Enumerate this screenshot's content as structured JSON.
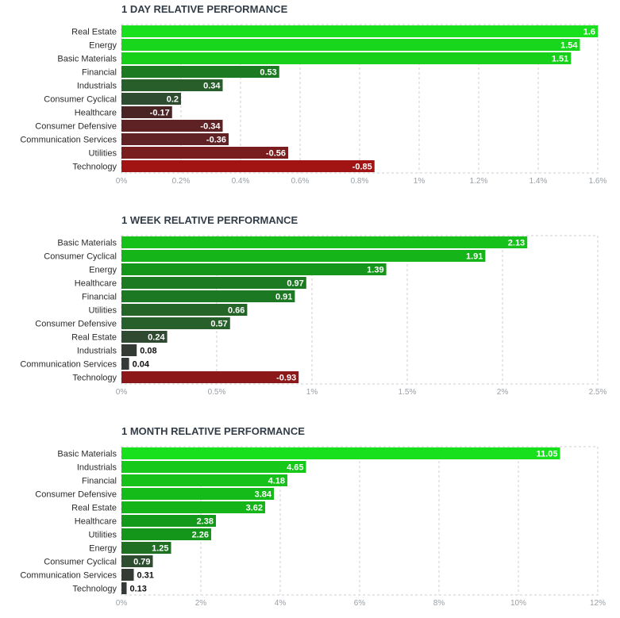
{
  "chart_data": [
    {
      "type": "bar",
      "orientation": "horizontal",
      "title": "1 DAY RELATIVE PERFORMANCE",
      "categories": [
        "Real Estate",
        "Energy",
        "Basic Materials",
        "Financial",
        "Industrials",
        "Consumer Cyclical",
        "Healthcare",
        "Consumer Defensive",
        "Communication Services",
        "Utilities",
        "Technology"
      ],
      "values": [
        1.6,
        1.54,
        1.51,
        0.53,
        0.34,
        0.2,
        -0.17,
        -0.34,
        -0.36,
        -0.56,
        -0.85
      ],
      "value_labels": [
        "1.6",
        "1.54",
        "1.51",
        "0.53",
        "0.34",
        "0.2",
        "-0.17",
        "-0.34",
        "-0.36",
        "-0.56",
        "-0.85"
      ],
      "bar_colors": [
        "#18e01c",
        "#17d61b",
        "#16d01a",
        "#1c7a22",
        "#275e2a",
        "#2e4d30",
        "#4a2324",
        "#5e2224",
        "#602224",
        "#7a1d1e",
        "#a21414"
      ],
      "ticks": [
        0,
        0.2,
        0.4,
        0.6,
        0.8,
        1,
        1.2,
        1.4,
        1.6
      ],
      "tick_labels": [
        "0%",
        "0.2%",
        "0.4%",
        "0.6%",
        "0.8%",
        "1%",
        "1.2%",
        "1.4%",
        "1.6%"
      ],
      "xlim": [
        0,
        1.6
      ],
      "xlabel": "",
      "ylabel": "",
      "grid": true,
      "legend": "none"
    },
    {
      "type": "bar",
      "orientation": "horizontal",
      "title": "1 WEEK RELATIVE PERFORMANCE",
      "categories": [
        "Basic Materials",
        "Consumer Cyclical",
        "Energy",
        "Healthcare",
        "Financial",
        "Utilities",
        "Consumer Defensive",
        "Real Estate",
        "Industrials",
        "Communication Services",
        "Technology"
      ],
      "values": [
        2.13,
        1.91,
        1.39,
        0.97,
        0.91,
        0.66,
        0.57,
        0.24,
        0.08,
        0.04,
        -0.93
      ],
      "value_labels": [
        "2.13",
        "1.91",
        "1.39",
        "0.97",
        "0.91",
        "0.66",
        "0.57",
        "0.24",
        "0.08",
        "0.04",
        "-0.93"
      ],
      "bar_colors": [
        "#16c21a",
        "#15b519",
        "#14961a",
        "#1c7a22",
        "#1d7823",
        "#256528",
        "#27602a",
        "#2f4a31",
        "#333b34",
        "#353a36",
        "#8c1819"
      ],
      "ticks": [
        0,
        0.5,
        1,
        1.5,
        2,
        2.5
      ],
      "tick_labels": [
        "0%",
        "0.5%",
        "1%",
        "1.5%",
        "2%",
        "2.5%"
      ],
      "xlim": [
        0,
        2.5
      ],
      "xlabel": "",
      "ylabel": "",
      "grid": true,
      "legend": "none"
    },
    {
      "type": "bar",
      "orientation": "horizontal",
      "title": "1 MONTH RELATIVE PERFORMANCE",
      "categories": [
        "Basic Materials",
        "Industrials",
        "Financial",
        "Consumer Defensive",
        "Real Estate",
        "Healthcare",
        "Utilities",
        "Energy",
        "Consumer Cyclical",
        "Communication Services",
        "Technology"
      ],
      "values": [
        11.05,
        4.65,
        4.18,
        3.84,
        3.62,
        2.38,
        2.26,
        1.25,
        0.79,
        0.31,
        0.13
      ],
      "value_labels": [
        "11.05",
        "4.65",
        "4.18",
        "3.84",
        "3.62",
        "2.38",
        "2.26",
        "1.25",
        "0.79",
        "0.31",
        "0.13"
      ],
      "bar_colors": [
        "#18e01c",
        "#16c81a",
        "#16c21a",
        "#15bb19",
        "#15b519",
        "#149a1a",
        "#14961a",
        "#1f7023",
        "#2e4d30",
        "#333b34",
        "#353a36"
      ],
      "ticks": [
        0,
        2,
        4,
        6,
        8,
        10,
        12
      ],
      "tick_labels": [
        "0%",
        "2%",
        "4%",
        "6%",
        "8%",
        "10%",
        "12%"
      ],
      "xlim": [
        0,
        12
      ],
      "xlabel": "",
      "ylabel": "",
      "grid": true,
      "legend": "none"
    }
  ]
}
